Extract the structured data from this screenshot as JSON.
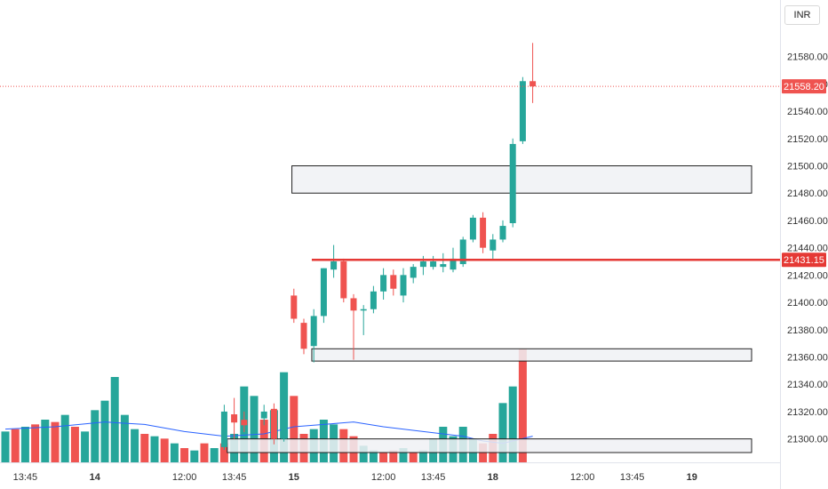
{
  "currency": "INR",
  "chart_data": {
    "type": "candlestick",
    "colors": {
      "up": "#26a69a",
      "down": "#ef5350",
      "price_line": "#ef5350",
      "level_line": "#e53935",
      "zone_fill": "#f0f1f5",
      "ma_line": "#2962ff"
    },
    "y_axis": {
      "ylim": [
        21290,
        21598
      ],
      "ticks": [
        "21300.00",
        "21320.00",
        "21340.00",
        "21360.00",
        "21380.00",
        "21400.00",
        "21420.00",
        "21440.00",
        "21460.00",
        "21480.00",
        "21500.00",
        "21520.00",
        "21540.00",
        "21560.00",
        "21580.00"
      ]
    },
    "x_ticks": [
      {
        "label": "13:45",
        "bar": 2
      },
      {
        "label": "14",
        "bar": 9,
        "bold": true
      },
      {
        "label": "12:00",
        "bar": 18
      },
      {
        "label": "13:45",
        "bar": 23
      },
      {
        "label": "15",
        "bar": 29,
        "bold": true
      },
      {
        "label": "12:00",
        "bar": 38
      },
      {
        "label": "13:45",
        "bar": 43
      },
      {
        "label": "18",
        "bar": 49,
        "bold": true
      },
      {
        "label": "12:00",
        "bar": 58
      },
      {
        "label": "13:45",
        "bar": 63
      },
      {
        "label": "19",
        "bar": 69,
        "bold": true
      }
    ],
    "candles": [
      {
        "bar": 22,
        "o": 21294,
        "h": 21325,
        "l": 21292,
        "c": 21320
      },
      {
        "bar": 23,
        "o": 21318,
        "h": 21330,
        "l": 21300,
        "c": 21312
      },
      {
        "bar": 24,
        "o": 21314,
        "h": 21320,
        "l": 21305,
        "c": 21310
      },
      {
        "bar": 25,
        "o": 21312,
        "h": 21318,
        "l": 21305,
        "c": 21315
      },
      {
        "bar": 26,
        "o": 21315,
        "h": 21325,
        "l": 21310,
        "c": 21320
      },
      {
        "bar": 27,
        "o": 21322,
        "h": 21326,
        "l": 21296,
        "c": 21300
      },
      {
        "bar": 28,
        "o": 21300,
        "h": 21345,
        "l": 21298,
        "c": 21344
      },
      {
        "bar": 29,
        "o": 21405,
        "h": 21410,
        "l": 21385,
        "c": 21388
      },
      {
        "bar": 30,
        "o": 21385,
        "h": 21388,
        "l": 21362,
        "c": 21366
      },
      {
        "bar": 31,
        "o": 21368,
        "h": 21395,
        "l": 21356,
        "c": 21390
      },
      {
        "bar": 32,
        "o": 21390,
        "h": 21425,
        "l": 21385,
        "c": 21425
      },
      {
        "bar": 33,
        "o": 21424,
        "h": 21442,
        "l": 21418,
        "c": 21430
      },
      {
        "bar": 34,
        "o": 21430,
        "h": 21432,
        "l": 21400,
        "c": 21403
      },
      {
        "bar": 35,
        "o": 21403,
        "h": 21406,
        "l": 21358,
        "c": 21394
      },
      {
        "bar": 36,
        "o": 21394,
        "h": 21398,
        "l": 21376,
        "c": 21395
      },
      {
        "bar": 37,
        "o": 21395,
        "h": 21412,
        "l": 21392,
        "c": 21408
      },
      {
        "bar": 38,
        "o": 21408,
        "h": 21425,
        "l": 21402,
        "c": 21420
      },
      {
        "bar": 39,
        "o": 21420,
        "h": 21424,
        "l": 21405,
        "c": 21410
      },
      {
        "bar": 40,
        "o": 21405,
        "h": 21425,
        "l": 21400,
        "c": 21420
      },
      {
        "bar": 41,
        "o": 21418,
        "h": 21428,
        "l": 21414,
        "c": 21426
      },
      {
        "bar": 42,
        "o": 21426,
        "h": 21434,
        "l": 21420,
        "c": 21430
      },
      {
        "bar": 43,
        "o": 21426,
        "h": 21434,
        "l": 21424,
        "c": 21430
      },
      {
        "bar": 44,
        "o": 21426,
        "h": 21436,
        "l": 21422,
        "c": 21428
      },
      {
        "bar": 45,
        "o": 21424,
        "h": 21440,
        "l": 21422,
        "c": 21432
      },
      {
        "bar": 46,
        "o": 21428,
        "h": 21448,
        "l": 21426,
        "c": 21446
      },
      {
        "bar": 47,
        "o": 21446,
        "h": 21464,
        "l": 21444,
        "c": 21462
      },
      {
        "bar": 48,
        "o": 21462,
        "h": 21466,
        "l": 21436,
        "c": 21440
      },
      {
        "bar": 49,
        "o": 21438,
        "h": 21450,
        "l": 21432,
        "c": 21446
      },
      {
        "bar": 50,
        "o": 21446,
        "h": 21460,
        "l": 21444,
        "c": 21456
      },
      {
        "bar": 51,
        "o": 21458,
        "h": 21520,
        "l": 21455,
        "c": 21516
      },
      {
        "bar": 52,
        "o": 21518,
        "h": 21565,
        "l": 21516,
        "c": 21562
      },
      {
        "bar": 53,
        "o": 21562,
        "h": 21590,
        "l": 21546,
        "c": 21558.2
      }
    ],
    "volume": {
      "values": [
        {
          "bar": 0,
          "v": 13,
          "up": true
        },
        {
          "bar": 1,
          "v": 14,
          "up": false
        },
        {
          "bar": 2,
          "v": 15,
          "up": true
        },
        {
          "bar": 3,
          "v": 16,
          "up": false
        },
        {
          "bar": 4,
          "v": 18,
          "up": true
        },
        {
          "bar": 5,
          "v": 17,
          "up": false
        },
        {
          "bar": 6,
          "v": 20,
          "up": true
        },
        {
          "bar": 7,
          "v": 15,
          "up": false
        },
        {
          "bar": 8,
          "v": 13,
          "up": true
        },
        {
          "bar": 9,
          "v": 22,
          "up": true
        },
        {
          "bar": 10,
          "v": 26,
          "up": true
        },
        {
          "bar": 11,
          "v": 36,
          "up": true
        },
        {
          "bar": 12,
          "v": 20,
          "up": true
        },
        {
          "bar": 13,
          "v": 14,
          "up": true
        },
        {
          "bar": 14,
          "v": 12,
          "up": false
        },
        {
          "bar": 15,
          "v": 11,
          "up": true
        },
        {
          "bar": 16,
          "v": 10,
          "up": false
        },
        {
          "bar": 17,
          "v": 8,
          "up": true
        },
        {
          "bar": 18,
          "v": 6,
          "up": false
        },
        {
          "bar": 19,
          "v": 5,
          "up": true
        },
        {
          "bar": 20,
          "v": 8,
          "up": false
        },
        {
          "bar": 21,
          "v": 6,
          "up": true
        },
        {
          "bar": 22,
          "v": 8,
          "up": false
        },
        {
          "bar": 23,
          "v": 12,
          "up": true
        },
        {
          "bar": 24,
          "v": 32,
          "up": true
        },
        {
          "bar": 25,
          "v": 28,
          "up": true
        },
        {
          "bar": 26,
          "v": 18,
          "up": false
        },
        {
          "bar": 27,
          "v": 22,
          "up": true
        },
        {
          "bar": 28,
          "v": 38,
          "up": true
        },
        {
          "bar": 29,
          "v": 28,
          "up": false
        },
        {
          "bar": 30,
          "v": 12,
          "up": false
        },
        {
          "bar": 31,
          "v": 14,
          "up": true
        },
        {
          "bar": 32,
          "v": 18,
          "up": true
        },
        {
          "bar": 33,
          "v": 16,
          "up": true
        },
        {
          "bar": 34,
          "v": 14,
          "up": false
        },
        {
          "bar": 35,
          "v": 11,
          "up": false
        },
        {
          "bar": 36,
          "v": 7,
          "up": true
        },
        {
          "bar": 37,
          "v": 5,
          "up": true
        },
        {
          "bar": 38,
          "v": 4,
          "up": false
        },
        {
          "bar": 39,
          "v": 5,
          "up": false
        },
        {
          "bar": 40,
          "v": 6,
          "up": true
        },
        {
          "bar": 41,
          "v": 4,
          "up": false
        },
        {
          "bar": 42,
          "v": 5,
          "up": true
        },
        {
          "bar": 43,
          "v": 10,
          "up": true
        },
        {
          "bar": 44,
          "v": 15,
          "up": true
        },
        {
          "bar": 45,
          "v": 11,
          "up": true
        },
        {
          "bar": 46,
          "v": 15,
          "up": true
        },
        {
          "bar": 47,
          "v": 10,
          "up": true
        },
        {
          "bar": 48,
          "v": 8,
          "up": false
        },
        {
          "bar": 49,
          "v": 12,
          "up": false
        },
        {
          "bar": 50,
          "v": 25,
          "up": true
        },
        {
          "bar": 51,
          "v": 32,
          "up": true
        },
        {
          "bar": 52,
          "v": 48,
          "up": false
        }
      ],
      "ma": [
        {
          "bar": 0,
          "v": 14
        },
        {
          "bar": 5,
          "v": 15
        },
        {
          "bar": 10,
          "v": 17
        },
        {
          "bar": 14,
          "v": 16
        },
        {
          "bar": 18,
          "v": 13
        },
        {
          "bar": 22,
          "v": 11
        },
        {
          "bar": 26,
          "v": 12
        },
        {
          "bar": 29,
          "v": 15
        },
        {
          "bar": 32,
          "v": 16
        },
        {
          "bar": 35,
          "v": 17
        },
        {
          "bar": 38,
          "v": 15
        },
        {
          "bar": 42,
          "v": 13
        },
        {
          "bar": 46,
          "v": 11
        },
        {
          "bar": 48,
          "v": 9
        },
        {
          "bar": 50,
          "v": 8
        },
        {
          "bar": 53,
          "v": 11
        }
      ],
      "max": 48
    },
    "zones": [
      {
        "from_bar": 28.8,
        "to_bar": 75,
        "top": 21500,
        "bottom": 21480
      },
      {
        "from_bar": 30.8,
        "to_bar": 75,
        "top": 21366,
        "bottom": 21357
      },
      {
        "from_bar": 22.3,
        "to_bar": 75,
        "top": 21300,
        "bottom": 21290
      }
    ],
    "level_line": {
      "from_bar": 30.8,
      "value": 21431.15,
      "label": "21431.15"
    },
    "last_price": {
      "value": 21558.2,
      "label": "21558.20"
    }
  }
}
